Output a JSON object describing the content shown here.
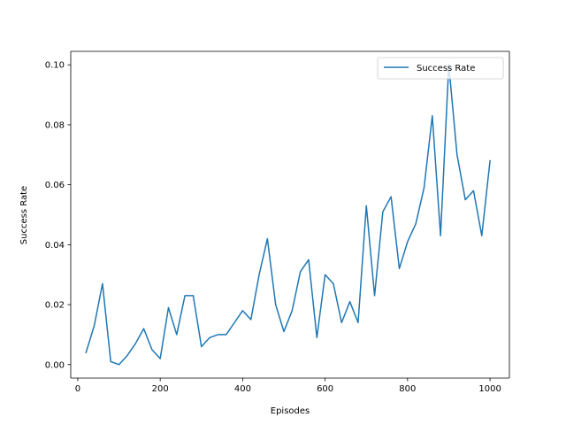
{
  "chart_data": {
    "type": "line",
    "title": "",
    "xlabel": "Episodes",
    "ylabel": "Success Rate",
    "xlim": [
      -17,
      1047
    ],
    "ylim": [
      -0.0045,
      0.1045
    ],
    "xticks": [
      0,
      200,
      400,
      600,
      800,
      1000
    ],
    "xtick_labels": [
      "0",
      "200",
      "400",
      "600",
      "800",
      "1000"
    ],
    "yticks": [
      0.0,
      0.02,
      0.04,
      0.06,
      0.08,
      0.1
    ],
    "ytick_labels": [
      "0.00",
      "0.02",
      "0.04",
      "0.06",
      "0.08",
      "0.10"
    ],
    "grid": false,
    "legend_position": "top-right",
    "colors": {
      "line": "#1f77b4",
      "axes": "#000000",
      "legend_border": "#cccccc"
    },
    "series": [
      {
        "name": "Success Rate",
        "x": [
          20,
          40,
          60,
          80,
          100,
          120,
          140,
          160,
          180,
          200,
          220,
          240,
          260,
          280,
          300,
          320,
          340,
          360,
          380,
          400,
          420,
          440,
          460,
          480,
          500,
          520,
          540,
          560,
          580,
          600,
          620,
          640,
          660,
          680,
          700,
          720,
          740,
          760,
          780,
          800,
          820,
          840,
          860,
          880,
          900,
          920,
          940,
          960,
          980,
          1000
        ],
        "values": [
          0.004,
          0.013,
          0.027,
          0.001,
          0.0,
          0.003,
          0.007,
          0.012,
          0.005,
          0.002,
          0.019,
          0.01,
          0.023,
          0.023,
          0.006,
          0.009,
          0.01,
          0.01,
          0.014,
          0.018,
          0.015,
          0.03,
          0.042,
          0.02,
          0.011,
          0.018,
          0.031,
          0.035,
          0.009,
          0.03,
          0.027,
          0.014,
          0.021,
          0.014,
          0.053,
          0.023,
          0.051,
          0.056,
          0.032,
          0.041,
          0.047,
          0.059,
          0.083,
          0.043,
          0.1,
          0.07,
          0.055,
          0.058,
          0.043,
          0.068
        ]
      }
    ]
  }
}
